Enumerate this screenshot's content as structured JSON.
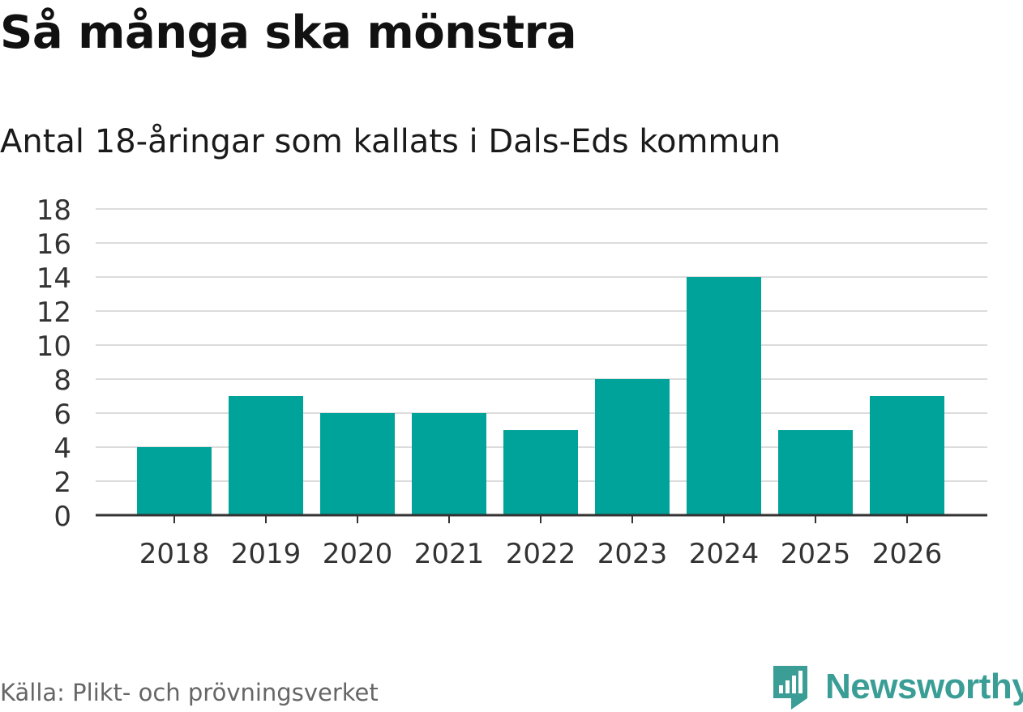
{
  "header": {
    "title": "Så många ska mönstra",
    "subtitle": "Antal 18-åringar som kallats i Dals-Eds kommun"
  },
  "footer": {
    "source": "Källa: Plikt- och prövningsverket",
    "brand": "Newsworthy",
    "brand_icon": "newsworthy-logo-icon"
  },
  "colors": {
    "bar": "#00a39a",
    "grid": "#dcdcdc",
    "axis": "#333333",
    "brand": "#3a9e96"
  },
  "chart_data": {
    "type": "bar",
    "title": "Så många ska mönstra",
    "subtitle": "Antal 18-åringar som kallats i Dals-Eds kommun",
    "xlabel": "",
    "ylabel": "",
    "categories": [
      "2018",
      "2019",
      "2020",
      "2021",
      "2022",
      "2023",
      "2024",
      "2025",
      "2026"
    ],
    "values": [
      4,
      7,
      6,
      6,
      5,
      8,
      14,
      5,
      7
    ],
    "ylim": [
      0,
      18
    ],
    "yticks": [
      0,
      2,
      4,
      6,
      8,
      10,
      12,
      14,
      16,
      18
    ],
    "grid": true,
    "legend": "none"
  }
}
